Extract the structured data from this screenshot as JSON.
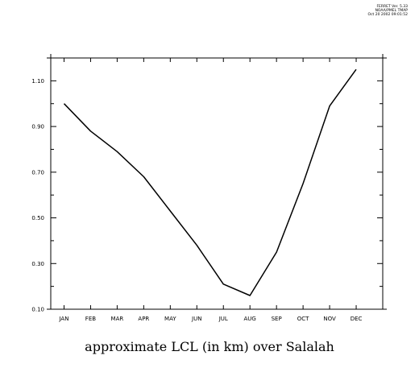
{
  "header": {
    "stamp_line1": "FERRET Ver. 5.33",
    "stamp_line2": "NOAA/PMEL TMAP",
    "stamp_line3": "Oct 20 2002 09:01:52"
  },
  "chart_data": {
    "type": "line",
    "title": "approximate LCL (in km) over Salalah",
    "xlabel": "",
    "ylabel": "",
    "categories": [
      "JAN",
      "FEB",
      "MAR",
      "APR",
      "MAY",
      "JUN",
      "JUL",
      "AUG",
      "SEP",
      "OCT",
      "NOV",
      "DEC"
    ],
    "series": [
      {
        "values": [
          1.0,
          0.88,
          0.79,
          0.68,
          0.53,
          0.38,
          0.21,
          0.16,
          0.35,
          0.65,
          0.99,
          1.15
        ]
      }
    ],
    "y_tick_labels": [
      "0.10",
      "0.30",
      "0.50",
      "0.70",
      "0.90",
      "1.10"
    ],
    "y_ticks": [
      0.1,
      0.3,
      0.5,
      0.7,
      0.9,
      1.1
    ],
    "ylim": [
      0.1,
      1.2
    ],
    "grid": false,
    "colors": {
      "line": "#000000",
      "axes": "#000000"
    }
  }
}
